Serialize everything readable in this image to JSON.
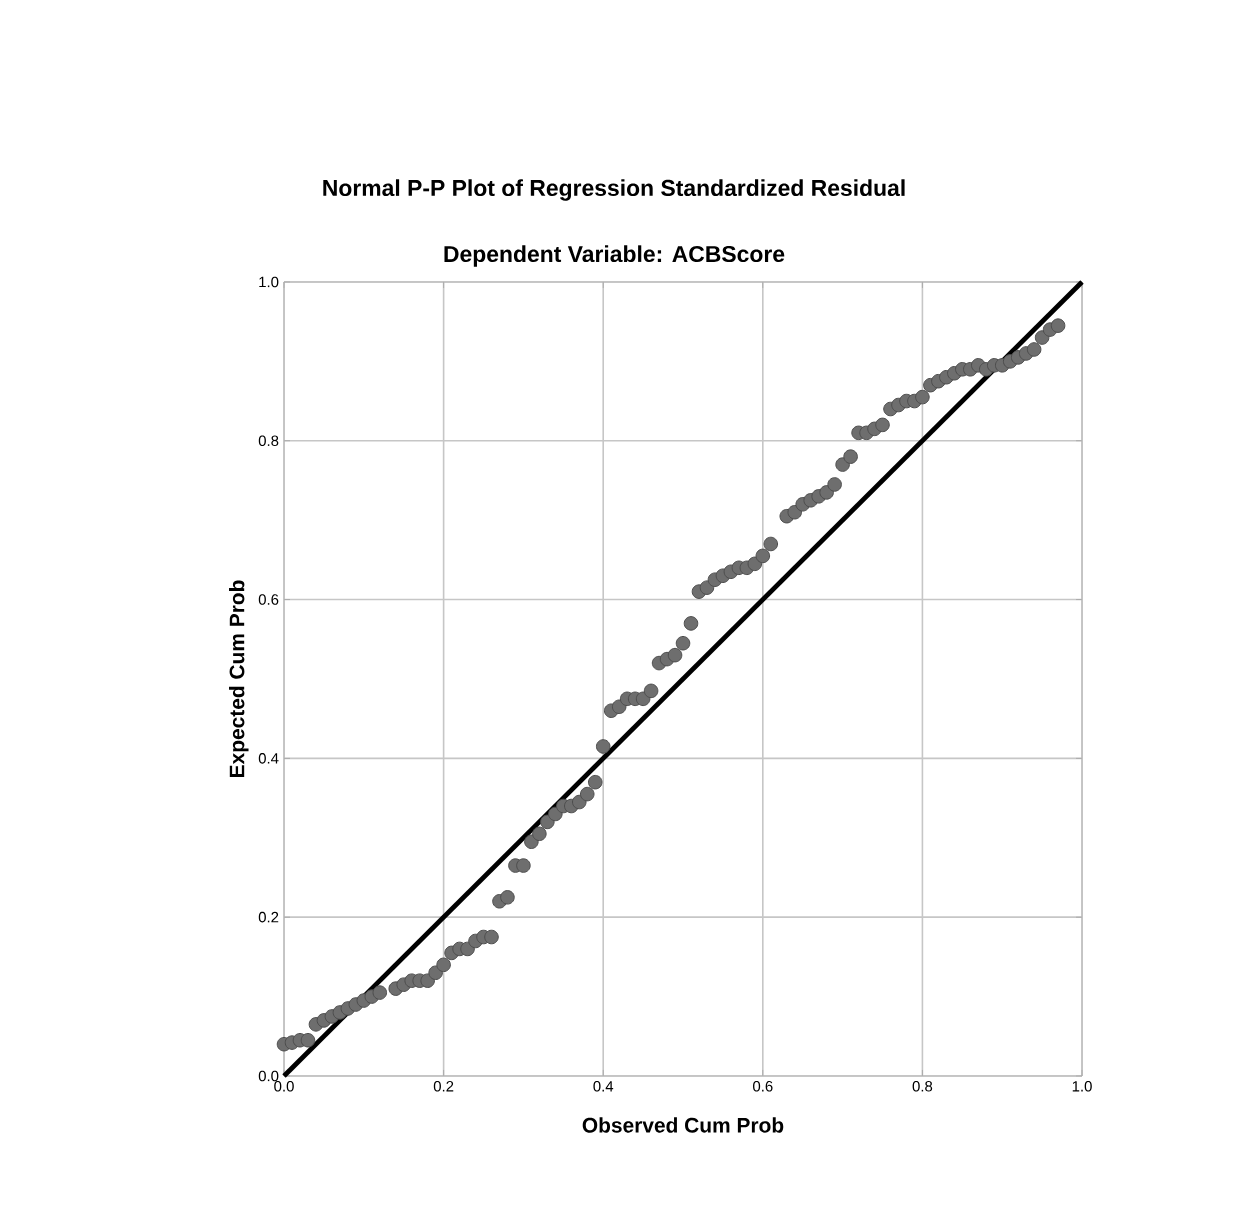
{
  "chart_data": {
    "type": "scatter",
    "title": "Normal P-P Plot of Regression Standardized Residual",
    "subtitle": "Dependent Variable: ACBScore",
    "xlabel": "Observed Cum Prob",
    "ylabel": "Expected Cum Prob",
    "xlim": [
      0,
      1
    ],
    "ylim": [
      0,
      1
    ],
    "xticks": [
      {
        "value": 0,
        "label": "0.0"
      },
      0.2,
      0.4,
      0.6,
      0.8,
      {
        "value": 1,
        "label": "1.0"
      }
    ],
    "yticks": [
      {
        "value": 0,
        "label": "0.0"
      },
      0.2,
      0.4,
      0.6,
      0.8,
      {
        "value": 1,
        "label": "1.0"
      }
    ],
    "grid": true,
    "series": [
      {
        "marker": "circle",
        "color": "#6e6e6e",
        "x": [
          0.0,
          0.01,
          0.02,
          0.03,
          0.04,
          0.05,
          0.06,
          0.07,
          0.08,
          0.09,
          0.1,
          0.11,
          0.12,
          0.14,
          0.15,
          0.16,
          0.17,
          0.18,
          0.19,
          0.2,
          0.21,
          0.22,
          0.23,
          0.24,
          0.25,
          0.26,
          0.27,
          0.28,
          0.29,
          0.3,
          0.31,
          0.32,
          0.33,
          0.34,
          0.35,
          0.36,
          0.37,
          0.38,
          0.39,
          0.4,
          0.41,
          0.42,
          0.43,
          0.44,
          0.45,
          0.46,
          0.47,
          0.48,
          0.49,
          0.5,
          0.51,
          0.52,
          0.53,
          0.54,
          0.55,
          0.56,
          0.57,
          0.58,
          0.59,
          0.6,
          0.61,
          0.63,
          0.64,
          0.65,
          0.66,
          0.67,
          0.68,
          0.69,
          0.7,
          0.71,
          0.72,
          0.73,
          0.74,
          0.75,
          0.76,
          0.77,
          0.78,
          0.79,
          0.8,
          0.81,
          0.82,
          0.83,
          0.84,
          0.85,
          0.86,
          0.87,
          0.88,
          0.89,
          0.9,
          0.91,
          0.92,
          0.93,
          0.94,
          0.95,
          0.96,
          0.97
        ],
        "values": [
          0.04,
          0.042,
          0.045,
          0.045,
          0.065,
          0.07,
          0.075,
          0.08,
          0.085,
          0.09,
          0.095,
          0.1,
          0.105,
          0.11,
          0.115,
          0.12,
          0.12,
          0.12,
          0.13,
          0.14,
          0.155,
          0.16,
          0.16,
          0.17,
          0.175,
          0.175,
          0.22,
          0.225,
          0.265,
          0.265,
          0.295,
          0.305,
          0.32,
          0.33,
          0.34,
          0.34,
          0.345,
          0.355,
          0.37,
          0.415,
          0.46,
          0.465,
          0.475,
          0.475,
          0.475,
          0.485,
          0.52,
          0.525,
          0.53,
          0.545,
          0.57,
          0.61,
          0.615,
          0.625,
          0.63,
          0.635,
          0.64,
          0.64,
          0.645,
          0.655,
          0.67,
          0.705,
          0.71,
          0.72,
          0.725,
          0.73,
          0.735,
          0.745,
          0.77,
          0.78,
          0.81,
          0.81,
          0.815,
          0.82,
          0.84,
          0.845,
          0.85,
          0.85,
          0.855,
          0.87,
          0.875,
          0.88,
          0.885,
          0.89,
          0.89,
          0.895,
          0.89,
          0.895,
          0.895,
          0.9,
          0.905,
          0.91,
          0.915,
          0.93,
          0.94,
          0.945
        ]
      },
      {
        "type": "line",
        "marker": "none",
        "color": "#000000",
        "x": [
          0,
          1
        ],
        "values": [
          0,
          1
        ]
      }
    ]
  }
}
